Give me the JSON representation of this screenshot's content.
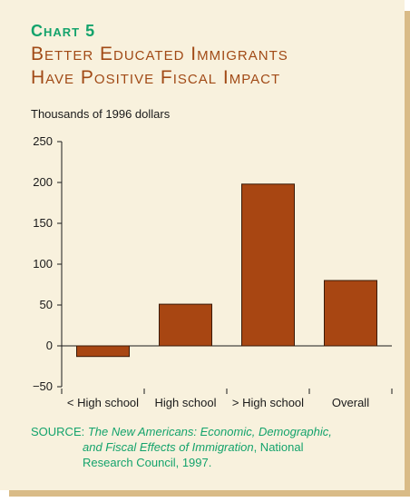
{
  "header": {
    "chart_number": "Chart 5",
    "title_line1": "Better Educated Immigrants",
    "title_line2": "Have Positive Fiscal Impact"
  },
  "units_label": "Thousands of 1996 dollars",
  "source": {
    "prefix": "SOURCE:",
    "citation_line1": "The New Americans: Economic, Demographic,",
    "citation_line2": "and Fiscal Effects of Immigration",
    "line2_suffix": ", National",
    "line3": "Research Council, 1997."
  },
  "colors": {
    "bar_fill": "#a84612",
    "bar_stroke": "#3a1a08",
    "title": "#a14a16",
    "accent_green": "#14a36c",
    "panel": "#f8f1dd"
  },
  "chart_data": {
    "type": "bar",
    "title": "Better Educated Immigrants Have Positive Fiscal Impact",
    "ylabel": "Thousands of 1996 dollars",
    "xlabel": "",
    "categories": [
      "< High school",
      "High school",
      "> High school",
      "Overall"
    ],
    "values": [
      -13,
      51,
      198,
      80
    ],
    "ylim": [
      -50,
      250
    ],
    "yticks": [
      -50,
      0,
      50,
      100,
      150,
      200,
      250
    ],
    "grid": false
  }
}
